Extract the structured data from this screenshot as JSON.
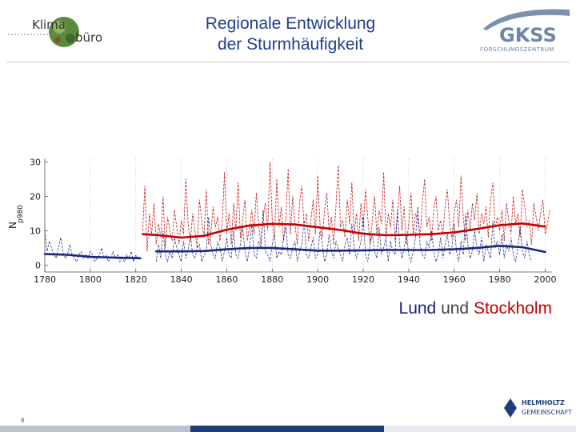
{
  "header": {
    "title_line1": "Regionale Entwicklung",
    "title_line2": "der Sturmhäufigkeit",
    "logo_left": {
      "word1": "Klima",
      "word2": "büro"
    },
    "logo_right": {
      "name": "GKSS",
      "sub": "FORSCHUNGSZENTRUM"
    }
  },
  "caption": {
    "part1": "Lund",
    "part2": " und ",
    "part3": "Stockholm"
  },
  "footer": {
    "page_number": "6",
    "logo": {
      "line1": "HELMHOLTZ",
      "line2": "GEMEINSCHAFT"
    }
  },
  "colors": {
    "title": "#1f3f8a",
    "lund": "#1a237e",
    "stockholm": "#c00000"
  },
  "chart_data": {
    "type": "line",
    "ylabel": "N",
    "ylabel_sub": "p980",
    "xlim": [
      1780,
      2003
    ],
    "ylim": [
      -2,
      31
    ],
    "xticks": [
      1780,
      1800,
      1820,
      1840,
      1860,
      1880,
      1900,
      1920,
      1940,
      1960,
      1980,
      2000
    ],
    "yticks": [
      0,
      10,
      20,
      30
    ],
    "grid": "dashed vertical",
    "series": [
      {
        "name": "Lund",
        "color": "#1a237e",
        "annual_x_start": 1780,
        "annual": [
          10,
          4,
          7,
          5,
          3,
          2,
          5,
          8,
          4,
          2,
          3,
          6,
          3,
          2,
          1,
          3,
          4,
          2,
          3,
          2,
          4,
          3,
          1,
          2,
          3,
          5,
          2,
          3,
          1,
          2,
          4,
          2,
          3,
          1,
          2,
          1,
          3,
          2,
          4,
          1,
          3,
          2
        ],
        "smooth_x": [
          1780,
          1790,
          1800,
          1810,
          1822
        ],
        "smooth": [
          3.2,
          3.0,
          2.4,
          2.2,
          2.0
        ]
      },
      {
        "name": "Lund",
        "color": "#1a237e",
        "annual_x_start": 1829,
        "annual": [
          1,
          6,
          2,
          10,
          3,
          1,
          4,
          2,
          8,
          5,
          3,
          1,
          7,
          2,
          4,
          9,
          3,
          2,
          5,
          6,
          1,
          3,
          4,
          14,
          6,
          3,
          2,
          7,
          5,
          1,
          4,
          8,
          3,
          2,
          10,
          3,
          2,
          6,
          11,
          4,
          1,
          5,
          12,
          3,
          2,
          7,
          5,
          16,
          4,
          3,
          1,
          6,
          9,
          2,
          4,
          3,
          8,
          11,
          3,
          2,
          5,
          7,
          1,
          4,
          6,
          13,
          3,
          2,
          5,
          8,
          2,
          3,
          10,
          6,
          1,
          3,
          9,
          4,
          2,
          7,
          5,
          3,
          1,
          6,
          8,
          3,
          12,
          5,
          2,
          4,
          7,
          14,
          3,
          1,
          6,
          9,
          4,
          2,
          11,
          3,
          5,
          8,
          1,
          7,
          4,
          3,
          16,
          6,
          2,
          5,
          9,
          3,
          1,
          4,
          8,
          17,
          6,
          3,
          2,
          7,
          5,
          10,
          4,
          1,
          3,
          8,
          2,
          6,
          9,
          3,
          5,
          12,
          4,
          1,
          7,
          3,
          15,
          6,
          2,
          4,
          10,
          5,
          3,
          8,
          1,
          6,
          4,
          2,
          13,
          5,
          7,
          3,
          9,
          2,
          6,
          4,
          8,
          3,
          1,
          5,
          11,
          4,
          2,
          7,
          3,
          1
        ],
        "smooth_x": [
          1829,
          1840,
          1850,
          1860,
          1870,
          1880,
          1890,
          1900,
          1910,
          1920,
          1930,
          1940,
          1950,
          1960,
          1970,
          1980,
          1990,
          2000
        ],
        "smooth": [
          4.0,
          4.0,
          4.1,
          4.6,
          5.0,
          5.0,
          4.6,
          4.2,
          4.2,
          4.3,
          4.4,
          4.4,
          4.4,
          4.6,
          5.0,
          5.6,
          5.2,
          3.8
        ]
      },
      {
        "name": "Stockholm",
        "color": "#c00000",
        "annual_x_start": 1823,
        "annual": [
          10,
          23,
          4,
          15,
          9,
          18,
          6,
          12,
          8,
          20,
          5,
          14,
          10,
          7,
          16,
          11,
          6,
          13,
          9,
          25,
          12,
          7,
          15,
          10,
          5,
          19,
          13,
          8,
          22,
          6,
          9,
          17,
          11,
          14,
          7,
          12,
          27,
          9,
          15,
          6,
          18,
          10,
          24,
          8,
          13,
          19,
          7,
          11,
          16,
          9,
          21,
          12,
          6,
          14,
          18,
          10,
          30,
          13,
          8,
          25,
          11,
          17,
          7,
          14,
          28,
          9,
          20,
          12,
          6,
          18,
          23,
          11,
          15,
          7,
          13,
          19,
          9,
          26,
          12,
          8,
          16,
          21,
          10,
          14,
          6,
          17,
          29,
          11,
          13,
          8,
          19,
          12,
          24,
          9,
          15,
          7,
          18,
          11,
          22,
          14,
          6,
          13,
          20,
          9,
          16,
          12,
          27,
          8,
          15,
          11,
          19,
          7,
          14,
          23,
          10,
          17,
          6,
          12,
          21,
          9,
          15,
          13,
          8,
          18,
          25,
          11,
          14,
          7,
          16,
          20,
          10,
          13,
          9,
          17,
          22,
          12,
          8,
          15,
          19,
          11,
          26,
          14,
          7,
          16,
          10,
          18,
          13,
          21,
          9,
          15,
          12,
          17,
          8,
          19,
          24,
          11,
          14,
          10,
          16,
          7,
          18,
          13,
          9,
          20,
          12,
          15,
          8,
          22,
          17,
          11,
          13,
          6,
          18,
          14,
          10,
          15,
          19,
          9,
          12,
          16
        ],
        "smooth_x": [
          1823,
          1830,
          1840,
          1850,
          1860,
          1870,
          1880,
          1890,
          1900,
          1910,
          1920,
          1930,
          1940,
          1950,
          1960,
          1970,
          1980,
          1990,
          2000
        ],
        "smooth": [
          9.0,
          8.7,
          8.0,
          8.5,
          10.3,
          11.5,
          12.0,
          11.8,
          11.0,
          10.2,
          9.1,
          8.7,
          8.8,
          9.0,
          9.5,
          10.5,
          11.6,
          12.1,
          11.2
        ]
      }
    ]
  }
}
